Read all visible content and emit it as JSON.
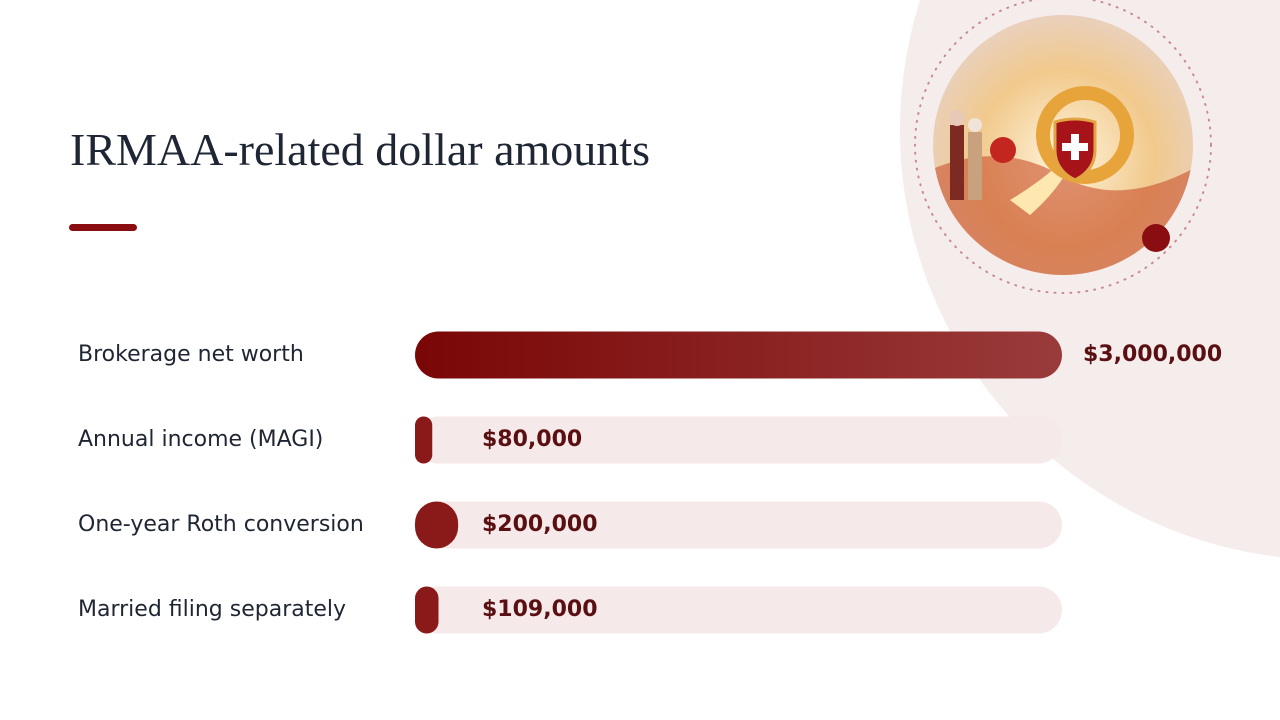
{
  "chart_data": {
    "type": "bar",
    "orientation": "horizontal",
    "title": "IRMAA-related dollar amounts",
    "categories": [
      "Brokerage net worth",
      "Annual income (MAGI)",
      "One-year Roth conversion",
      "Married filing separately"
    ],
    "values": [
      3000000,
      80000,
      200000,
      109000
    ],
    "value_labels": [
      "$3,000,000",
      "$80,000",
      "$200,000",
      "$109,000"
    ],
    "xlim": [
      0,
      3000000
    ],
    "color": "#8a1a1a"
  }
}
